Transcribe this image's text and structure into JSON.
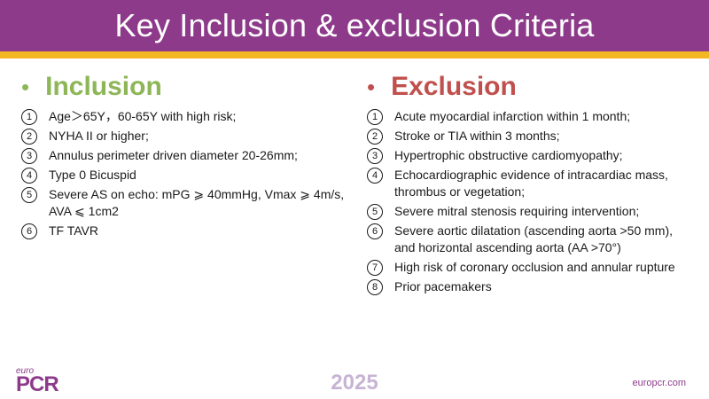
{
  "slide": {
    "title": "Key Inclusion & exclusion Criteria"
  },
  "inclusion": {
    "bullet": "•",
    "heading": "Inclusion",
    "items": [
      {
        "num": "1",
        "text": "Age＞65Y，60-65Y with high risk;"
      },
      {
        "num": "2",
        "text": "NYHA II or higher;"
      },
      {
        "num": "3",
        "text": "Annulus perimeter driven diameter 20-26mm;"
      },
      {
        "num": "4",
        "text": "Type 0 Bicuspid"
      },
      {
        "num": "5",
        "text": "Severe AS on echo: mPG ⩾ 40mmHg, Vmax ⩾ 4m/s, AVA ⩽ 1cm2"
      },
      {
        "num": "6",
        "text": "TF TAVR"
      }
    ]
  },
  "exclusion": {
    "bullet": "•",
    "heading": "Exclusion",
    "items": [
      {
        "num": "1",
        "text": "Acute myocardial infarction within 1 month;"
      },
      {
        "num": "2",
        "text": "Stroke or TIA within 3 months;"
      },
      {
        "num": "3",
        "text": "Hypertrophic obstructive cardiomyopathy;"
      },
      {
        "num": "4",
        "text": "Echocardiographic evidence of intracardiac mass, thrombus or vegetation;"
      },
      {
        "num": "5",
        "text": "Severe mitral stenosis requiring intervention;"
      },
      {
        "num": "6",
        "text": "Severe aortic dilatation (ascending aorta >50 mm), and horizontal ascending aorta (AA >70°)"
      },
      {
        "num": "7",
        "text": "High risk of  coronary occlusion and annular rupture"
      },
      {
        "num": "8",
        "text": "Prior pacemakers"
      }
    ]
  },
  "footer": {
    "logo_small": "euro",
    "logo_big": "PCR",
    "year": "2025",
    "url": "europcr.com"
  },
  "colors": {
    "title_bar": "#8e3a8b",
    "title_stripe": "#f3b724",
    "inclusion": "#8db657",
    "exclusion": "#c0504d"
  }
}
